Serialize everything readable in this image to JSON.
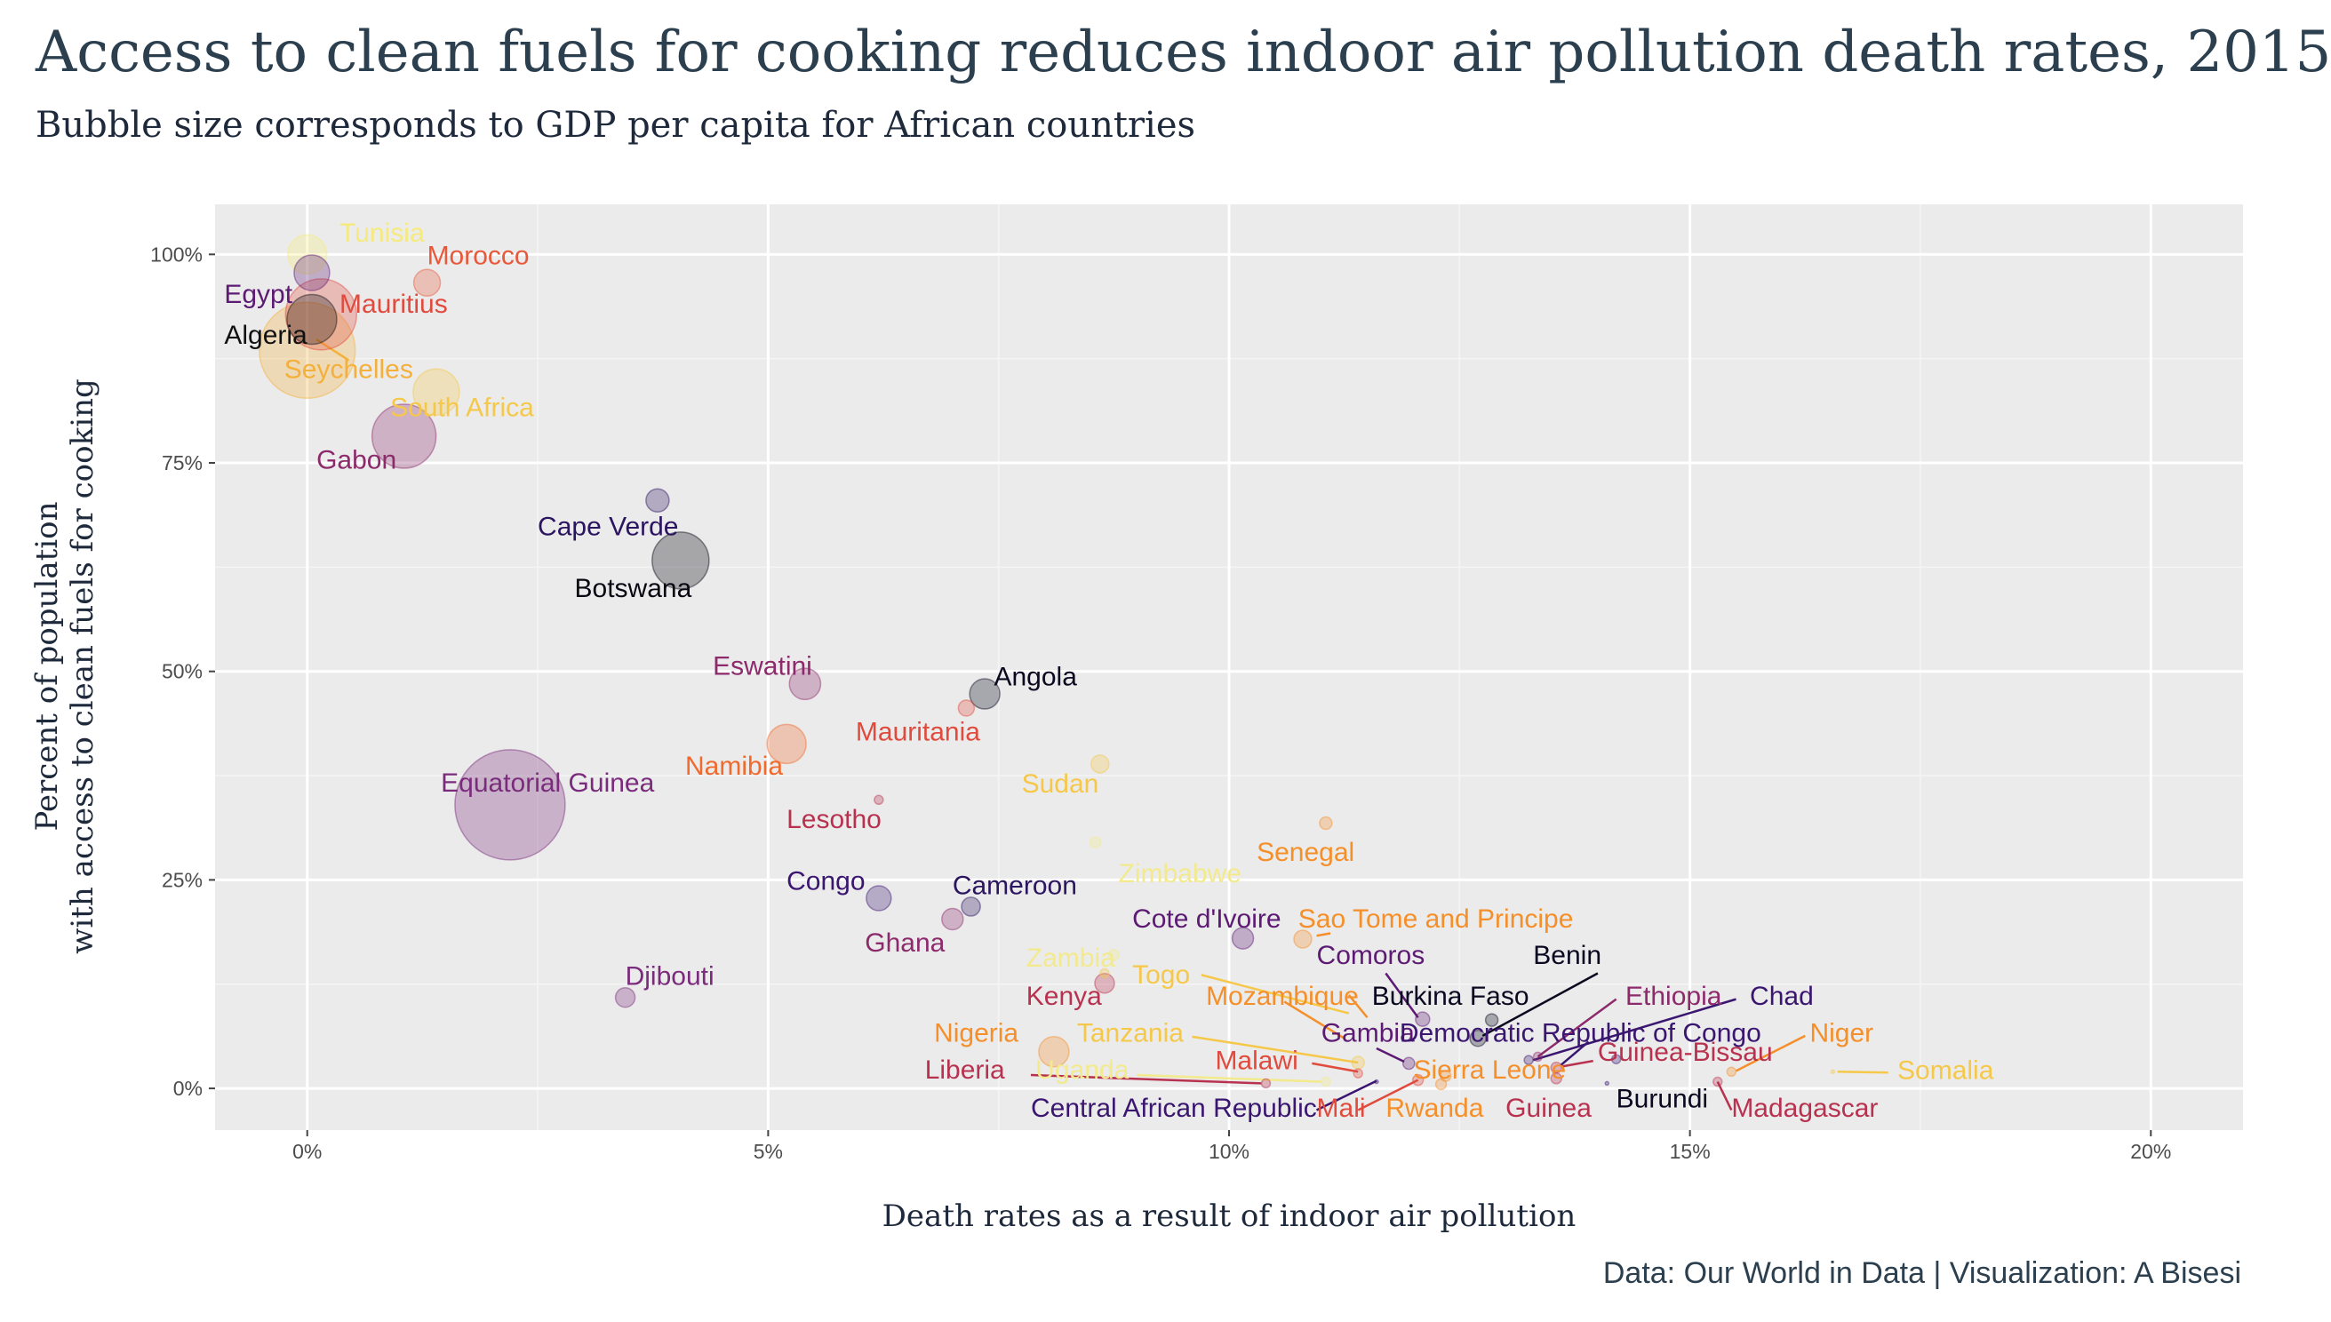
{
  "title": "Access to clean fuels for cooking reduces indoor air pollution death rates, 2015",
  "subtitle": "Bubble size corresponds to GDP per capita for African countries",
  "caption": "Data: Our World in Data | Visualization: A Bisesi",
  "chart_data": {
    "type": "scatter",
    "xlabel": "Death rates as a result of indoor air pollution",
    "ylabel_lines": [
      "Percent of population",
      "with access to clean fuels for cooking"
    ],
    "xlim": [
      -1,
      21
    ],
    "ylim": [
      -5,
      106
    ],
    "x_ticks": [
      {
        "value": 0,
        "label": "0%"
      },
      {
        "value": 5,
        "label": "5%"
      },
      {
        "value": 10,
        "label": "10%"
      },
      {
        "value": 15,
        "label": "15%"
      },
      {
        "value": 20,
        "label": "20%"
      }
    ],
    "y_ticks": [
      {
        "value": 0,
        "label": "0%"
      },
      {
        "value": 25,
        "label": "25%"
      },
      {
        "value": 50,
        "label": "50%"
      },
      {
        "value": 75,
        "label": "75%"
      },
      {
        "value": 100,
        "label": "100%"
      }
    ],
    "grid": true,
    "legend": "none",
    "size_variable": "GDP per capita",
    "points": [
      {
        "name": "Tunisia",
        "x": 0.0,
        "y": 100.0,
        "size": 11,
        "color": "#f5ea7a"
      },
      {
        "name": "Morocco",
        "x": 1.3,
        "y": 96.6,
        "size": 7.5,
        "color": "#e8583a"
      },
      {
        "name": "Egypt",
        "x": 0.05,
        "y": 97.8,
        "size": 10,
        "color": "#5c1a73"
      },
      {
        "name": "Mauritius",
        "x": 0.15,
        "y": 92.8,
        "size": 20,
        "color": "#e04b3e"
      },
      {
        "name": "Algeria",
        "x": 0.05,
        "y": 92.2,
        "size": 14,
        "color": "#111111"
      },
      {
        "name": "Seychelles",
        "x": 0.0,
        "y": 88.5,
        "size": 27,
        "color": "#f4b03a"
      },
      {
        "name": "South Africa",
        "x": 1.4,
        "y": 83.5,
        "size": 13,
        "color": "#f5c84a"
      },
      {
        "name": "Gabon",
        "x": 1.05,
        "y": 78.2,
        "size": 18,
        "color": "#8c2a6b"
      },
      {
        "name": "Cape Verde",
        "x": 3.8,
        "y": 70.5,
        "size": 6.5,
        "color": "#2c1560"
      },
      {
        "name": "Botswana",
        "x": 4.05,
        "y": 63.3,
        "size": 16,
        "color": "#080712"
      },
      {
        "name": "Eswatini",
        "x": 5.4,
        "y": 48.5,
        "size": 8.8,
        "color": "#8c2a6b"
      },
      {
        "name": "Angola",
        "x": 7.35,
        "y": 47.3,
        "size": 8.5,
        "color": "#0b0920"
      },
      {
        "name": "Mauritania",
        "x": 7.15,
        "y": 45.6,
        "size": 4.5,
        "color": "#e04b3e"
      },
      {
        "name": "Namibia",
        "x": 5.2,
        "y": 41.3,
        "size": 11,
        "color": "#ef6a2c"
      },
      {
        "name": "Sudan",
        "x": 8.6,
        "y": 38.9,
        "size": 5,
        "color": "#f5c84a"
      },
      {
        "name": "Equatorial Guinea",
        "x": 2.2,
        "y": 34.0,
        "size": 31,
        "color": "#7a2b7c"
      },
      {
        "name": "Lesotho",
        "x": 6.2,
        "y": 34.6,
        "size": 2.5,
        "color": "#b8324f"
      },
      {
        "name": "Senegal",
        "x": 11.05,
        "y": 31.8,
        "size": 3.5,
        "color": "#f48f2a"
      },
      {
        "name": "Zimbabwe",
        "x": 8.55,
        "y": 29.5,
        "size": 3.0,
        "color": "#f2ea8c"
      },
      {
        "name": "Congo",
        "x": 6.2,
        "y": 22.8,
        "size": 7,
        "color": "#3a1670"
      },
      {
        "name": "Cameroon",
        "x": 7.2,
        "y": 21.8,
        "size": 5.3,
        "color": "#2c1560"
      },
      {
        "name": "Ghana",
        "x": 7.0,
        "y": 20.3,
        "size": 6,
        "color": "#8c2a6b"
      },
      {
        "name": "Cote d'Ivoire",
        "x": 10.15,
        "y": 18.0,
        "size": 6,
        "color": "#5c1a73"
      },
      {
        "name": "Sao Tome and Principe",
        "x": 10.8,
        "y": 17.9,
        "size": 5,
        "color": "#f48f2a"
      },
      {
        "name": "Zambia",
        "x": 8.75,
        "y": 16.0,
        "size": 3.0,
        "color": "#f2ea8c"
      },
      {
        "name": "Togo",
        "x": 8.65,
        "y": 13.8,
        "size": 2.5,
        "color": "#f5c84a"
      },
      {
        "name": "Kenya",
        "x": 8.65,
        "y": 12.6,
        "size": 5.5,
        "color": "#b8324f"
      },
      {
        "name": "Djibouti",
        "x": 3.45,
        "y": 10.9,
        "size": 5.5,
        "color": "#7a2b7c"
      },
      {
        "name": "Comoros",
        "x": 12.1,
        "y": 8.3,
        "size": 4.0,
        "color": "#5c1a73"
      },
      {
        "name": "Benin",
        "x": 12.85,
        "y": 8.2,
        "size": 3.5,
        "color": "#0b0920"
      },
      {
        "name": "Burkina Faso",
        "x": 12.7,
        "y": 6.0,
        "size": 4.5,
        "color": "#0b0920"
      },
      {
        "name": "Ethiopia",
        "x": 13.35,
        "y": 3.8,
        "size": 2.5,
        "color": "#8c2a6b"
      },
      {
        "name": "Chad",
        "x": 13.25,
        "y": 3.4,
        "size": 2.5,
        "color": "#3a1670"
      },
      {
        "name": "Democratic Republic of Congo",
        "x": 14.2,
        "y": 3.5,
        "size": 2.5,
        "color": "#3a1670"
      },
      {
        "name": "Guinea-Bissau",
        "x": 13.55,
        "y": 2.5,
        "size": 3.0,
        "color": "#b8324f"
      },
      {
        "name": "Niger",
        "x": 15.45,
        "y": 2.0,
        "size": 2.5,
        "color": "#f48f2a"
      },
      {
        "name": "Somalia",
        "x": 16.55,
        "y": 2.0,
        "size": 1.0,
        "color": "#f5c84a"
      },
      {
        "name": "Nigeria",
        "x": 8.1,
        "y": 4.4,
        "size": 8.5,
        "color": "#f48f2a"
      },
      {
        "name": "Tanzania",
        "x": 11.4,
        "y": 3.1,
        "size": 3.5,
        "color": "#f5c84a"
      },
      {
        "name": "Gambia",
        "x": 11.95,
        "y": 3.0,
        "size": 3.3,
        "color": "#5c1a73"
      },
      {
        "name": "Malawi",
        "x": 11.4,
        "y": 1.8,
        "size": 2.5,
        "color": "#e04b3e"
      },
      {
        "name": "Sierra Leone",
        "x": 12.35,
        "y": 1.5,
        "size": 3.0,
        "color": "#f48f2a"
      },
      {
        "name": "Liberia",
        "x": 10.4,
        "y": 0.6,
        "size": 2.5,
        "color": "#b8324f"
      },
      {
        "name": "Uganda",
        "x": 11.05,
        "y": 0.8,
        "size": 2.5,
        "color": "#f2ea8c"
      },
      {
        "name": "Rwanda",
        "x": 12.3,
        "y": 0.5,
        "size": 3.0,
        "color": "#f48f2a"
      },
      {
        "name": "Mali",
        "x": 12.05,
        "y": 1.0,
        "size": 3.0,
        "color": "#e04b3e"
      },
      {
        "name": "Central African Republic",
        "x": 11.6,
        "y": 0.8,
        "size": 1.0,
        "color": "#3a1670"
      },
      {
        "name": "Guinea",
        "x": 13.55,
        "y": 1.2,
        "size": 3.0,
        "color": "#b8324f"
      },
      {
        "name": "Burundi",
        "x": 14.1,
        "y": 0.6,
        "size": 1.0,
        "color": "#3a1670"
      },
      {
        "name": "Madagascar",
        "x": 15.3,
        "y": 0.8,
        "size": 2.5,
        "color": "#b8324f"
      }
    ],
    "labels": [
      {
        "text": "Tunisia",
        "x": 0.35,
        "y": 101.5,
        "color": "#f5ea7a",
        "anchor": "start"
      },
      {
        "text": "Morocco",
        "x": 1.3,
        "y": 98.8,
        "color": "#e8583a",
        "anchor": "start"
      },
      {
        "text": "Egypt",
        "x": -0.9,
        "y": 94.2,
        "color": "#5c1a73",
        "anchor": "start"
      },
      {
        "text": "Mauritius",
        "x": 0.35,
        "y": 93.0,
        "color": "#e04b3e",
        "anchor": "start"
      },
      {
        "text": "Algeria",
        "x": -0.9,
        "y": 89.3,
        "color": "#111111",
        "anchor": "start"
      },
      {
        "text": "Seychelles",
        "x": -0.25,
        "y": 85.2,
        "color": "#f4b03a",
        "anchor": "start"
      },
      {
        "text": "South Africa",
        "x": 0.9,
        "y": 80.6,
        "color": "#f5c84a",
        "anchor": "start"
      },
      {
        "text": "Gabon",
        "x": 0.1,
        "y": 74.3,
        "color": "#8c2a6b",
        "anchor": "start"
      },
      {
        "text": "Cape Verde",
        "x": 2.5,
        "y": 66.3,
        "color": "#2c1560",
        "anchor": "start"
      },
      {
        "text": "Botswana",
        "x": 2.9,
        "y": 58.9,
        "color": "#080712",
        "anchor": "start"
      },
      {
        "text": "Eswatini",
        "x": 4.4,
        "y": 49.6,
        "color": "#8c2a6b",
        "anchor": "start"
      },
      {
        "text": "Angola",
        "x": 7.45,
        "y": 48.3,
        "color": "#0b0920",
        "anchor": "start"
      },
      {
        "text": "Mauritania",
        "x": 5.95,
        "y": 41.7,
        "color": "#e04b3e",
        "anchor": "start"
      },
      {
        "text": "Namibia",
        "x": 4.1,
        "y": 37.6,
        "color": "#ef6a2c",
        "anchor": "start"
      },
      {
        "text": "Sudan",
        "x": 7.75,
        "y": 35.5,
        "color": "#f5c84a",
        "anchor": "start"
      },
      {
        "text": "Equatorial Guinea",
        "x": 1.45,
        "y": 35.6,
        "color": "#7a2b7c",
        "anchor": "start"
      },
      {
        "text": "Lesotho",
        "x": 5.2,
        "y": 31.2,
        "color": "#b8324f",
        "anchor": "start"
      },
      {
        "text": "Senegal",
        "x": 10.3,
        "y": 27.3,
        "color": "#f48f2a",
        "anchor": "start"
      },
      {
        "text": "Zimbabwe",
        "x": 8.8,
        "y": 24.7,
        "color": "#f2ea8c",
        "anchor": "start"
      },
      {
        "text": "Congo",
        "x": 5.2,
        "y": 23.8,
        "color": "#3a1670",
        "anchor": "start"
      },
      {
        "text": "Cameroon",
        "x": 7.0,
        "y": 23.3,
        "color": "#2c1560",
        "anchor": "start"
      },
      {
        "text": "Ghana",
        "x": 6.05,
        "y": 16.4,
        "color": "#8c2a6b",
        "anchor": "start"
      },
      {
        "text": "Cote d'Ivoire",
        "x": 8.95,
        "y": 19.3,
        "color": "#5c1a73",
        "anchor": "start"
      },
      {
        "text": "Sao Tome and Principe",
        "x": 10.75,
        "y": 19.3,
        "color": "#f48f2a",
        "anchor": "start"
      },
      {
        "text": "Zambia",
        "x": 7.8,
        "y": 14.6,
        "color": "#f2ea8c",
        "anchor": "start"
      },
      {
        "text": "Togo",
        "x": 8.95,
        "y": 12.6,
        "color": "#f5c84a",
        "anchor": "start"
      },
      {
        "text": "Kenya",
        "x": 7.8,
        "y": 10.0,
        "color": "#b8324f",
        "anchor": "start"
      },
      {
        "text": "Djibouti",
        "x": 3.45,
        "y": 12.4,
        "color": "#7a2b7c",
        "anchor": "start"
      },
      {
        "text": "Comoros",
        "x": 10.95,
        "y": 14.9,
        "color": "#5c1a73",
        "anchor": "start"
      },
      {
        "text": "Benin",
        "x": 13.3,
        "y": 14.9,
        "color": "#0b0920",
        "anchor": "start"
      },
      {
        "text": "Burkina Faso",
        "x": 11.55,
        "y": 10.0,
        "color": "#0b0920",
        "anchor": "start"
      },
      {
        "text": "Ethiopia",
        "x": 14.3,
        "y": 10.0,
        "color": "#8c2a6b",
        "anchor": "start"
      },
      {
        "text": "Chad",
        "x": 15.65,
        "y": 10.0,
        "color": "#3a1670",
        "anchor": "start"
      },
      {
        "text": "Mozambique",
        "x": 9.75,
        "y": 10.0,
        "color": "#f48f2a",
        "anchor": "start"
      },
      {
        "text": "Gambia",
        "x": 11.0,
        "y": 5.6,
        "color": "#5c1a73",
        "anchor": "start"
      },
      {
        "text": "Democratic Republic of Congo",
        "x": 11.85,
        "y": 5.6,
        "color": "#3a1670",
        "anchor": "start"
      },
      {
        "text": "Guinea-Bissau",
        "x": 14.0,
        "y": 3.3,
        "color": "#b8324f",
        "anchor": "start"
      },
      {
        "text": "Niger",
        "x": 16.3,
        "y": 5.6,
        "color": "#f48f2a",
        "anchor": "start"
      },
      {
        "text": "Somalia",
        "x": 17.25,
        "y": 1.1,
        "color": "#f5c84a",
        "anchor": "start"
      },
      {
        "text": "Nigeria",
        "x": 6.8,
        "y": 5.6,
        "color": "#f48f2a",
        "anchor": "start"
      },
      {
        "text": "Tanzania",
        "x": 8.35,
        "y": 5.6,
        "color": "#f5c84a",
        "anchor": "start"
      },
      {
        "text": "Malawi",
        "x": 9.85,
        "y": 2.3,
        "color": "#e04b3e",
        "anchor": "start"
      },
      {
        "text": "Sierra Leone",
        "x": 12.0,
        "y": 1.2,
        "color": "#f48f2a",
        "anchor": "start"
      },
      {
        "text": "Liberia",
        "x": 6.7,
        "y": 1.2,
        "color": "#b8324f",
        "anchor": "start"
      },
      {
        "text": "Uganda",
        "x": 7.9,
        "y": 1.2,
        "color": "#f2ea8c",
        "anchor": "start"
      },
      {
        "text": "Central African Republic",
        "x": 7.85,
        "y": -3.4,
        "color": "#3a1670",
        "anchor": "start"
      },
      {
        "text": "Mali",
        "x": 10.95,
        "y": -3.4,
        "color": "#e04b3e",
        "anchor": "start"
      },
      {
        "text": "Rwanda",
        "x": 11.7,
        "y": -3.4,
        "color": "#f48f2a",
        "anchor": "start"
      },
      {
        "text": "Guinea",
        "x": 13.0,
        "y": -3.4,
        "color": "#b8324f",
        "anchor": "start"
      },
      {
        "text": "Burundi",
        "x": 14.2,
        "y": -2.3,
        "color": "#0b0920",
        "anchor": "start"
      },
      {
        "text": "Madagascar",
        "x": 15.45,
        "y": -3.4,
        "color": "#b8324f",
        "anchor": "start"
      }
    ],
    "leader_lines": [
      {
        "from": [
          0.1,
          89.8
        ],
        "to": [
          0.45,
          87.3
        ],
        "color": "#f4b03a"
      },
      {
        "from": [
          11.1,
          18.6
        ],
        "to": [
          10.95,
          18.3
        ],
        "color": "#f48f2a"
      },
      {
        "from": [
          9.7,
          13.6
        ],
        "to": [
          11.3,
          9.0
        ],
        "color": "#f5c84a"
      },
      {
        "from": [
          10.6,
          10.4
        ],
        "to": [
          11.25,
          6.0
        ],
        "color": "#f48f2a"
      },
      {
        "from": [
          11.3,
          11.2
        ],
        "to": [
          11.5,
          8.5
        ],
        "color": "#f48f2a"
      },
      {
        "from": [
          11.7,
          13.8
        ],
        "to": [
          12.05,
          8.5
        ],
        "color": "#5c1a73"
      },
      {
        "from": [
          14.0,
          13.8
        ],
        "to": [
          12.75,
          6.3
        ],
        "color": "#0b0920"
      },
      {
        "from": [
          14.2,
          10.7
        ],
        "to": [
          13.35,
          3.8
        ],
        "color": "#8c2a6b"
      },
      {
        "from": [
          15.5,
          10.7
        ],
        "to": [
          13.3,
          3.4
        ],
        "color": "#3a1670"
      },
      {
        "from": [
          13.9,
          5.6
        ],
        "to": [
          13.6,
          2.8
        ],
        "color": "#3a1670"
      },
      {
        "from": [
          13.95,
          3.3
        ],
        "to": [
          13.6,
          2.6
        ],
        "color": "#b8324f"
      },
      {
        "from": [
          16.25,
          6.3
        ],
        "to": [
          15.5,
          2.1
        ],
        "color": "#f48f2a"
      },
      {
        "from": [
          17.15,
          1.9
        ],
        "to": [
          16.6,
          2.0
        ],
        "color": "#f5c84a"
      },
      {
        "from": [
          9.6,
          6.2
        ],
        "to": [
          11.4,
          3.1
        ],
        "color": "#f5c84a"
      },
      {
        "from": [
          10.9,
          3.0
        ],
        "to": [
          11.4,
          2.0
        ],
        "color": "#e04b3e"
      },
      {
        "from": [
          11.6,
          4.8
        ],
        "to": [
          11.9,
          3.2
        ],
        "color": "#5c1a73"
      },
      {
        "from": [
          7.85,
          1.6
        ],
        "to": [
          10.35,
          0.6
        ],
        "color": "#b8324f"
      },
      {
        "from": [
          9.0,
          1.6
        ],
        "to": [
          11.0,
          0.8
        ],
        "color": "#f2ea8c"
      },
      {
        "from": [
          10.95,
          -2.6
        ],
        "to": [
          11.6,
          0.9
        ],
        "color": "#3a1670"
      },
      {
        "from": [
          11.4,
          -2.6
        ],
        "to": [
          12.05,
          1.0
        ],
        "color": "#e04b3e"
      },
      {
        "from": [
          15.45,
          -2.6
        ],
        "to": [
          15.3,
          0.8
        ],
        "color": "#b8324f"
      }
    ]
  }
}
